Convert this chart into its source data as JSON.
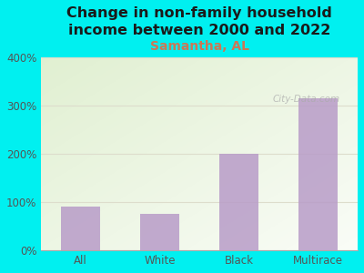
{
  "title": "Change in non-family household\nincome between 2000 and 2022",
  "subtitle": "Samantha, AL",
  "categories": [
    "All",
    "White",
    "Black",
    "Multirace"
  ],
  "values": [
    90,
    75,
    200,
    315
  ],
  "bar_color": "#b89cc8",
  "background_color": "#00f0f0",
  "title_color": "#1a1a1a",
  "subtitle_color": "#cc7755",
  "tick_label_color": "#555555",
  "ylim": [
    0,
    400
  ],
  "yticks": [
    0,
    100,
    200,
    300,
    400
  ],
  "watermark": "City-Data.com",
  "title_fontsize": 11.5,
  "subtitle_fontsize": 10,
  "grid_color": "#ddddcc"
}
